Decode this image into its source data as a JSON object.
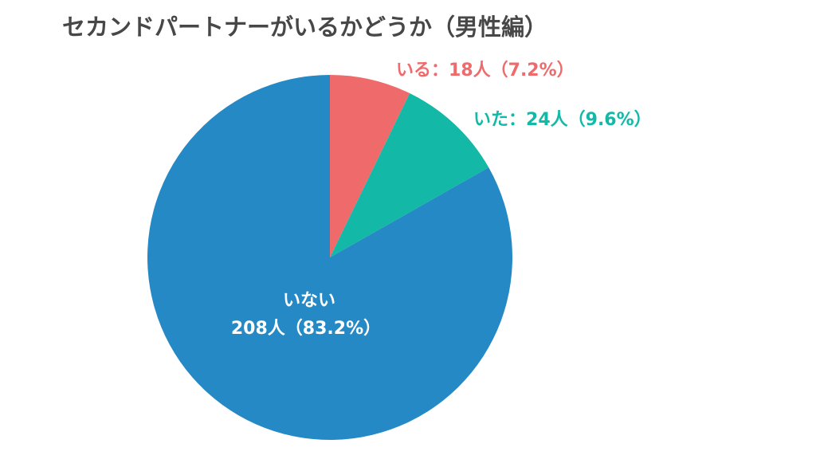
{
  "chart_data": {
    "type": "pie",
    "title": "セカンドパートナーがいるかどうか（男性編）",
    "categories": [
      "いる",
      "いた",
      "いない"
    ],
    "values": [
      7.2,
      9.6,
      83.2
    ],
    "value_labels": [
      "18人（7.2%）",
      "24人（9.6%）",
      "208人（83.2%）"
    ],
    "label_separator": "：",
    "colors": [
      "#ef6b6b",
      "#13b8a6",
      "#2589c5"
    ]
  }
}
